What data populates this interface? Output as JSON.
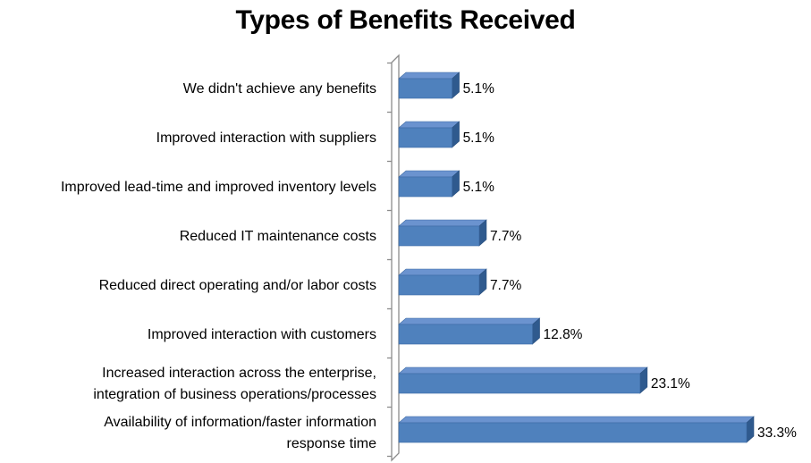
{
  "chart_data": {
    "type": "bar",
    "orientation": "horizontal",
    "title": "Types of Benefits Received",
    "xlabel": "",
    "ylabel": "",
    "value_suffix": "%",
    "xlim": [
      0,
      35
    ],
    "grid": false,
    "legend": "none",
    "bar_color": "#4f81bd",
    "categories": [
      [
        "We didn't achieve any benefits"
      ],
      [
        "Improved interaction with suppliers"
      ],
      [
        "Improved lead-time and improved inventory levels"
      ],
      [
        "Reduced IT maintenance costs"
      ],
      [
        "Reduced direct operating and/or labor costs"
      ],
      [
        "Improved interaction with customers"
      ],
      [
        "Increased interaction across the enterprise,",
        "integration of business operations/processes"
      ],
      [
        "Availability of information/faster information",
        "response time"
      ]
    ],
    "values": [
      5.1,
      5.1,
      5.1,
      7.7,
      7.7,
      12.8,
      23.1,
      33.3
    ],
    "value_labels": [
      "5.1%",
      "5.1%",
      "5.1%",
      "7.7%",
      "7.7%",
      "12.8%",
      "23.1%",
      "33.3%"
    ]
  }
}
